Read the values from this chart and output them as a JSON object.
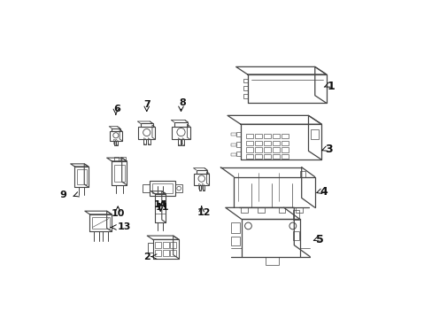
{
  "bg_color": "#ffffff",
  "line_color": "#444444",
  "text_color": "#111111",
  "fig_width": 4.89,
  "fig_height": 3.6,
  "dpi": 100
}
